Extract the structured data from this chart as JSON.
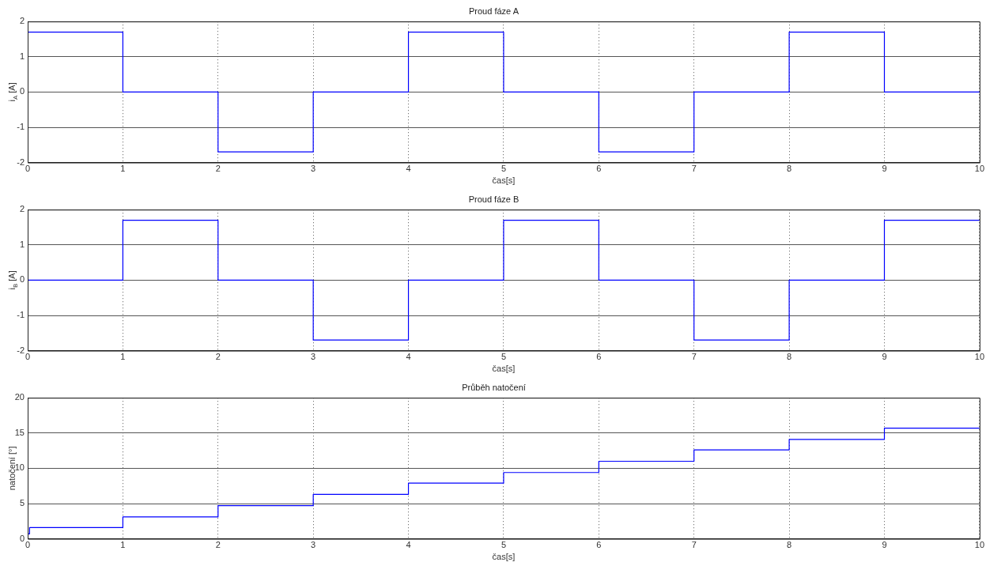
{
  "chart_data": [
    {
      "type": "step",
      "title": "Proud fáze A",
      "xlabel": "čas[s]",
      "ylabel": "i$_{A}$ [A]",
      "x": [
        0,
        1,
        2,
        3,
        4,
        5,
        6,
        7,
        8,
        9,
        10
      ],
      "series": [
        {
          "color": "#0000ff",
          "values": [
            1.7,
            0,
            -1.7,
            0,
            1.7,
            0,
            -1.7,
            0,
            1.7,
            0,
            0
          ]
        }
      ],
      "xlim": [
        0,
        10
      ],
      "xticks": [
        0,
        1,
        2,
        3,
        4,
        5,
        6,
        7,
        8,
        9,
        10
      ],
      "ylim": [
        -2,
        2
      ],
      "yticks": [
        -2,
        -1,
        0,
        1,
        2
      ],
      "grid": true,
      "legend": false
    },
    {
      "type": "step",
      "title": "Proud fáze B",
      "xlabel": "čas[s]",
      "ylabel": "i$_{B}$ [A]",
      "x": [
        0,
        1,
        2,
        3,
        4,
        5,
        6,
        7,
        8,
        9,
        10
      ],
      "series": [
        {
          "color": "#0000ff",
          "values": [
            0,
            1.7,
            0,
            -1.7,
            0,
            1.7,
            0,
            -1.7,
            0,
            1.7,
            1.7
          ]
        }
      ],
      "xlim": [
        0,
        10
      ],
      "xticks": [
        0,
        1,
        2,
        3,
        4,
        5,
        6,
        7,
        8,
        9,
        10
      ],
      "ylim": [
        -2,
        2
      ],
      "yticks": [
        -2,
        -1,
        0,
        1,
        2
      ],
      "grid": true,
      "legend": false
    },
    {
      "type": "step",
      "title": "Průběh natočení",
      "xlabel": "čas[s]",
      "ylabel": "natočení [°]",
      "x": [
        0,
        0.02,
        1,
        2,
        3,
        4,
        5,
        6,
        7,
        8,
        9,
        10
      ],
      "series": [
        {
          "color": "#0000ff",
          "values": [
            0.7,
            1.6,
            3.1,
            4.7,
            6.3,
            7.9,
            9.4,
            11,
            12.6,
            14.1,
            15.7,
            15.7
          ]
        }
      ],
      "xlim": [
        0,
        10
      ],
      "xticks": [
        0,
        1,
        2,
        3,
        4,
        5,
        6,
        7,
        8,
        9,
        10
      ],
      "ylim": [
        0,
        20
      ],
      "yticks": [
        0,
        5,
        10,
        15,
        20
      ],
      "grid": true,
      "legend": false
    }
  ]
}
